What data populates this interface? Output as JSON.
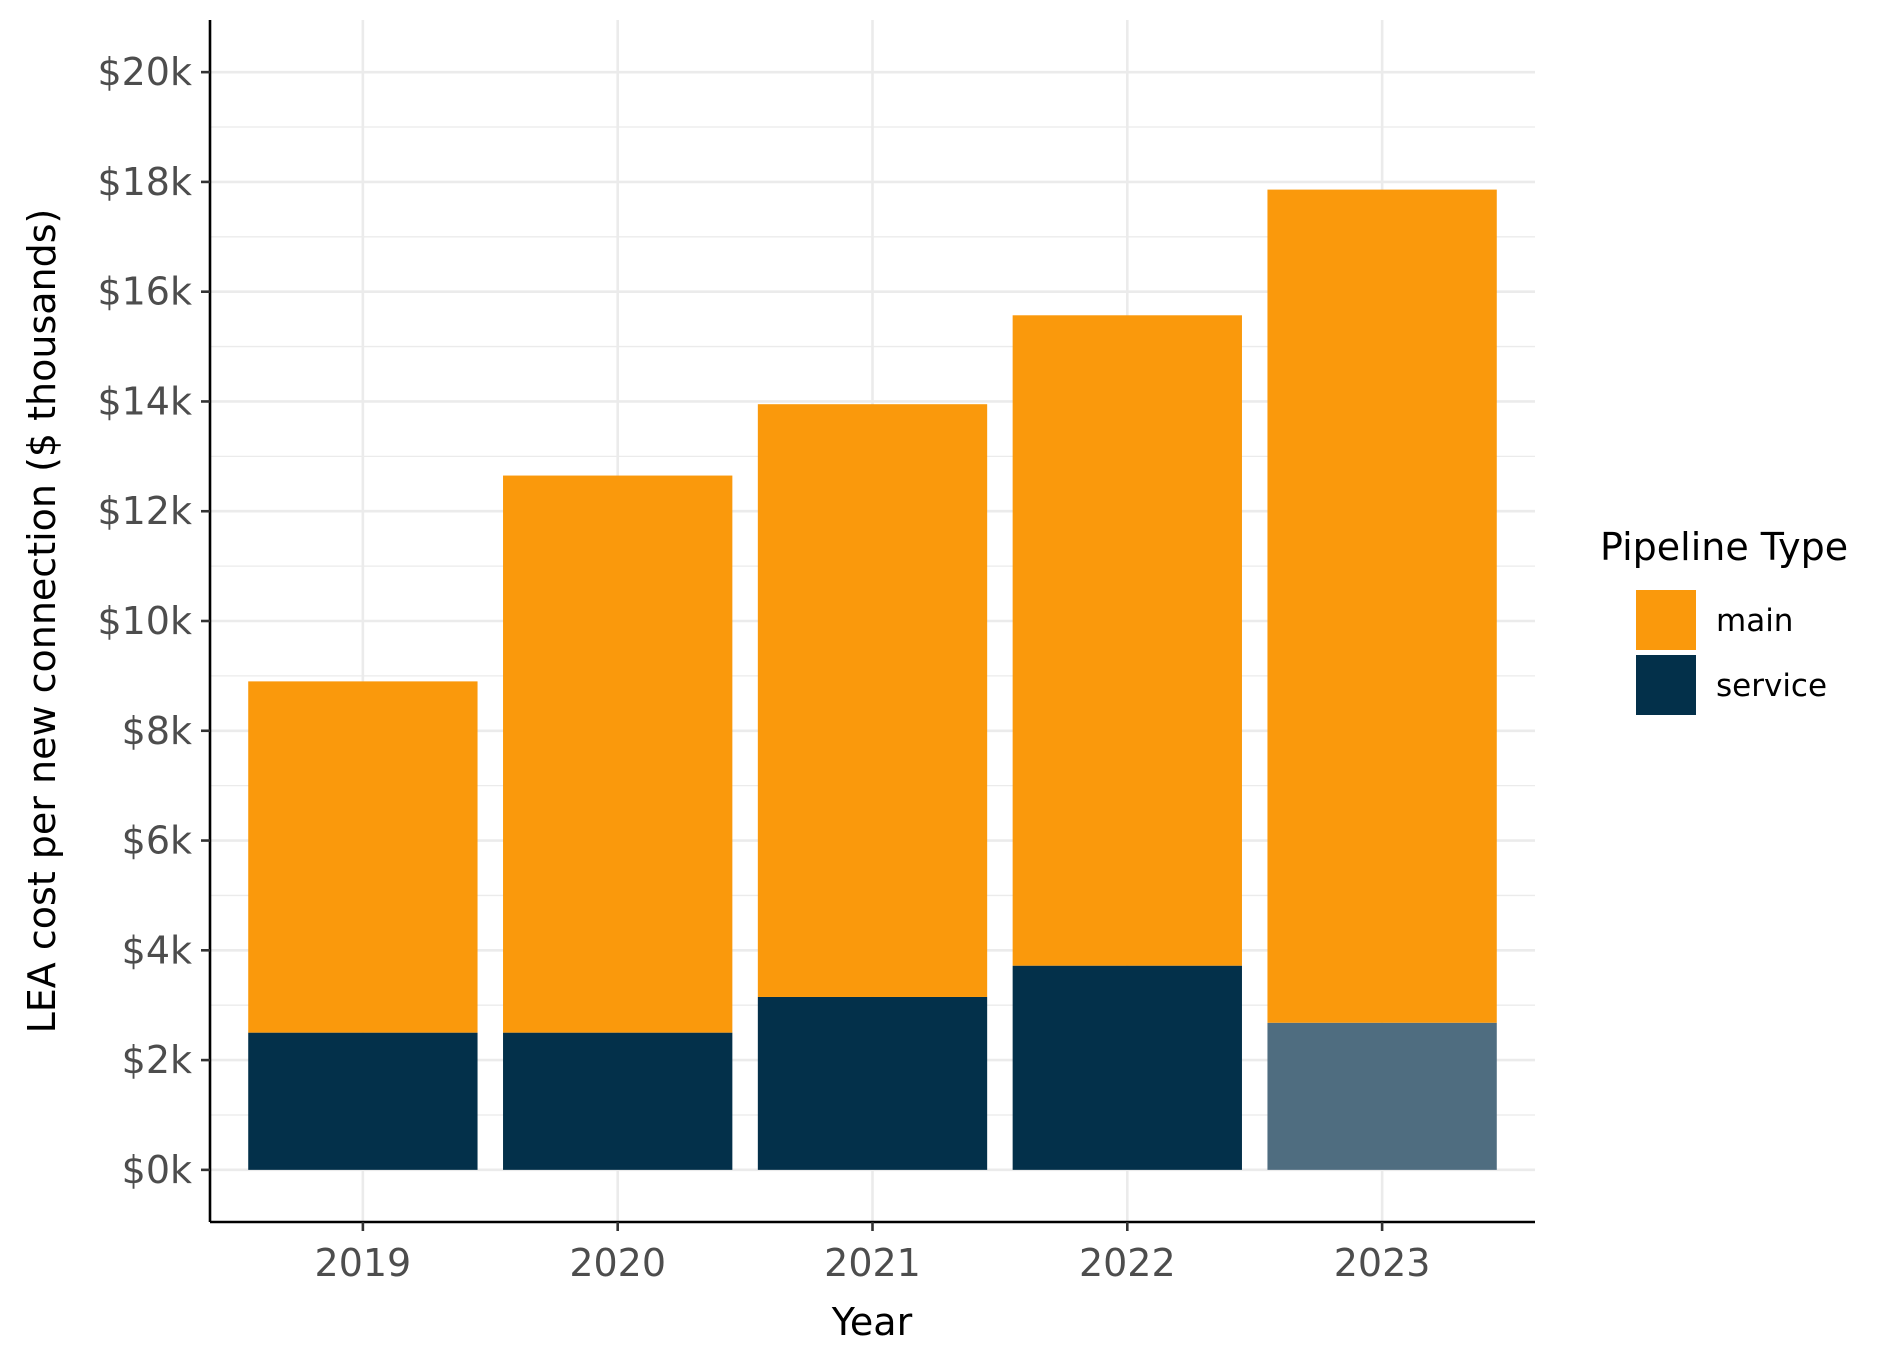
{
  "chart_data": {
    "type": "bar",
    "stacked": true,
    "categories": [
      "2019",
      "2020",
      "2021",
      "2022",
      "2023"
    ],
    "series": [
      {
        "name": "service",
        "values": [
          2.5,
          2.5,
          3.15,
          3.72,
          2.68
        ],
        "color": "#03304a"
      },
      {
        "name": "main",
        "values": [
          6.4,
          10.15,
          10.8,
          11.85,
          15.18
        ],
        "color": "#fa990c"
      }
    ],
    "highlight": {
      "category": "2023",
      "series": "service",
      "color": "#4f6d80"
    },
    "xlabel": "Year",
    "ylabel": "LEA cost per new connection ($ thousands)",
    "ylim": [
      -0.95,
      20.95
    ],
    "yticks": [
      0,
      2,
      4,
      6,
      8,
      10,
      12,
      14,
      16,
      18,
      20
    ],
    "ytick_labels": [
      "$0k",
      "$2k",
      "$4k",
      "$6k",
      "$8k",
      "$10k",
      "$12k",
      "$14k",
      "$16k",
      "$18k",
      "$20k"
    ],
    "grid": true,
    "legend": {
      "title": "Pipeline Type",
      "placement": "right",
      "entries": [
        {
          "label": "main",
          "color": "#fa990c"
        },
        {
          "label": "service",
          "color": "#03304a"
        }
      ]
    }
  }
}
